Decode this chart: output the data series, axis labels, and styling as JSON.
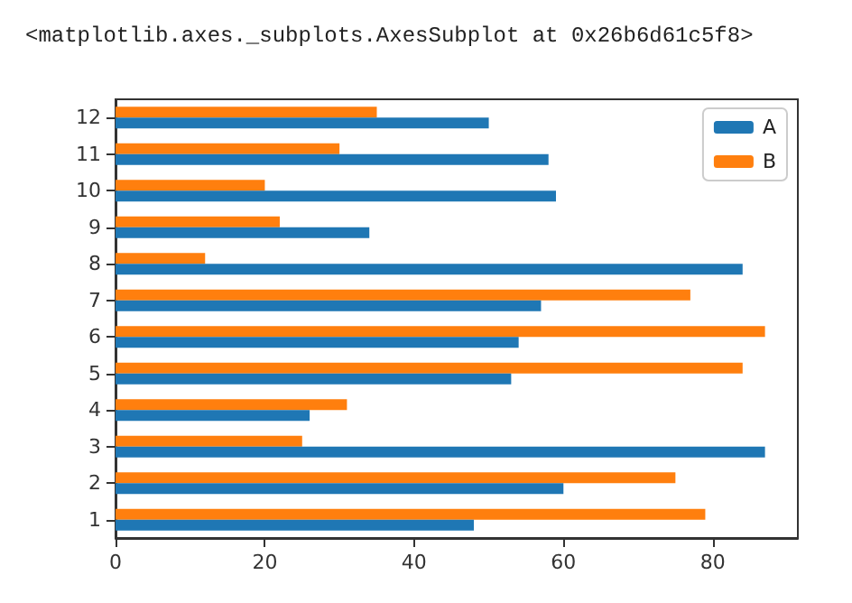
{
  "chart_data": {
    "type": "bar",
    "orientation": "horizontal",
    "categories": [
      "12",
      "11",
      "10",
      "9",
      "8",
      "7",
      "6",
      "5",
      "4",
      "3",
      "2",
      "1"
    ],
    "series": [
      {
        "name": "A",
        "color": "#1f77b4",
        "values": [
          50,
          58,
          59,
          34,
          84,
          57,
          54,
          53,
          26,
          87,
          60,
          48
        ]
      },
      {
        "name": "B",
        "color": "#ff7f0e",
        "values": [
          35,
          30,
          20,
          22,
          12,
          77,
          87,
          84,
          31,
          25,
          75,
          79
        ]
      }
    ],
    "xlim": [
      0,
      91.4
    ],
    "xticks": [
      0,
      20,
      40,
      60,
      80
    ],
    "grid": false,
    "legend": "top right",
    "annotations": [
      "<matplotlib.axes._subplots.AxesSubplot at 0x26b6d61c5f8>"
    ]
  }
}
